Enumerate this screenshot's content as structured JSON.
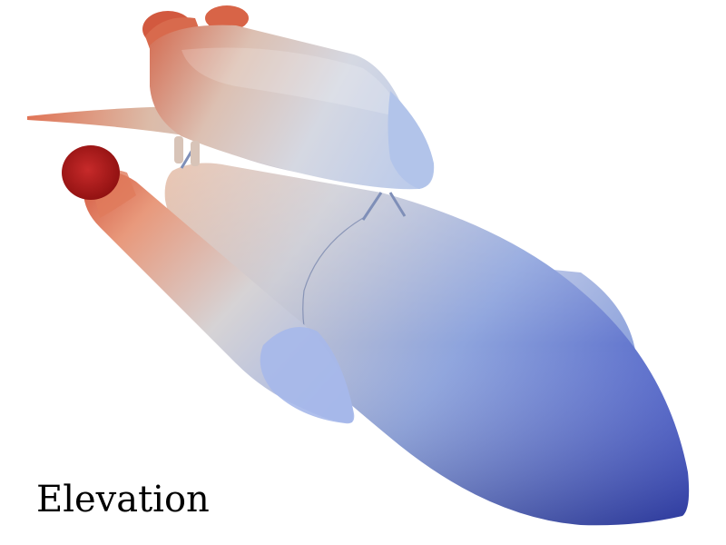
{
  "caption": "Elevation",
  "scene": {
    "subject": "space-shuttle-stack",
    "colormap": {
      "high": "#b40426",
      "mid": "#dddcdc",
      "low": "#3b4cc0"
    }
  }
}
